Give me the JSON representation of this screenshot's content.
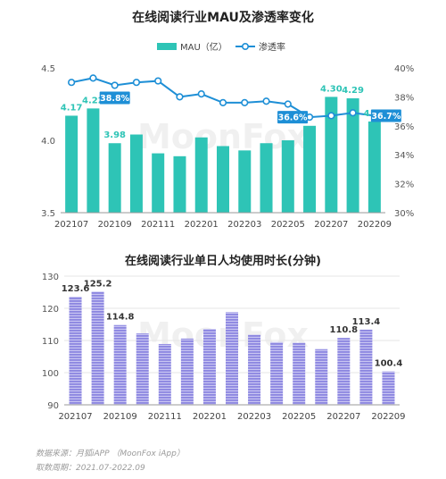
{
  "chart_data": [
    {
      "type": "bar+line",
      "title": "在线阅读行业MAU及渗透率变化",
      "legend": [
        "MAU（亿）",
        "渗透率"
      ],
      "legend_position": "top-center",
      "categories": [
        "202107",
        "202108",
        "202109",
        "202110",
        "202111",
        "202112",
        "202201",
        "202202",
        "202203",
        "202204",
        "202205",
        "202206",
        "202207",
        "202208",
        "202209"
      ],
      "x_tick_labels": [
        "202107",
        "202109",
        "202111",
        "202201",
        "202203",
        "202205",
        "202207",
        "202209"
      ],
      "series": [
        {
          "name": "MAU（亿）",
          "type": "bar",
          "axis": "left",
          "values": [
            4.17,
            4.22,
            3.98,
            4.04,
            3.91,
            3.89,
            4.02,
            3.96,
            3.93,
            3.98,
            4.0,
            4.1,
            4.3,
            4.29,
            4.13
          ]
        },
        {
          "name": "渗透率",
          "type": "line",
          "axis": "right",
          "values": [
            39.0,
            39.3,
            38.8,
            39.0,
            39.1,
            38.0,
            38.2,
            37.6,
            37.6,
            37.7,
            37.5,
            36.6,
            36.7,
            36.9,
            36.7
          ]
        }
      ],
      "bar_labels": [
        {
          "index": 0,
          "text": "4.17"
        },
        {
          "index": 1,
          "text": "4.22"
        },
        {
          "index": 2,
          "text": "3.98"
        },
        {
          "index": 12,
          "text": "4.30"
        },
        {
          "index": 13,
          "text": "4.29"
        },
        {
          "index": 14,
          "text": "4.13"
        }
      ],
      "line_labels": [
        {
          "index": 2,
          "text": "38.8%"
        },
        {
          "index": 11,
          "text": "36.6%"
        },
        {
          "index": 14,
          "text": "36.7%"
        }
      ],
      "y_left": {
        "min": 3.5,
        "max": 4.5,
        "ticks": [
          "3.5",
          "4.0",
          "4.5"
        ]
      },
      "y_right": {
        "min": 30,
        "max": 40,
        "ticks": [
          "30%",
          "32%",
          "34%",
          "36%",
          "38%",
          "40%"
        ]
      },
      "colors": {
        "bar": "#2ec4b6",
        "line": "#1e8fd6",
        "label_box": "#1e8fd6"
      }
    },
    {
      "type": "bar",
      "title": "在线阅读行业单日人均使用时长(分钟)",
      "categories": [
        "202107",
        "202108",
        "202109",
        "202110",
        "202111",
        "202112",
        "202201",
        "202202",
        "202203",
        "202204",
        "202205",
        "202206",
        "202207",
        "202208",
        "202209"
      ],
      "x_tick_labels": [
        "202107",
        "202109",
        "202111",
        "202201",
        "202203",
        "202205",
        "202207",
        "202209"
      ],
      "values": [
        123.6,
        125.2,
        114.8,
        112.2,
        108.9,
        110.6,
        113.6,
        118.8,
        111.8,
        109.5,
        109.3,
        107.3,
        110.8,
        113.4,
        100.4
      ],
      "bar_labels": [
        {
          "index": 0,
          "text": "123.6"
        },
        {
          "index": 1,
          "text": "125.2"
        },
        {
          "index": 2,
          "text": "114.8"
        },
        {
          "index": 12,
          "text": "110.8"
        },
        {
          "index": 13,
          "text": "113.4"
        },
        {
          "index": 14,
          "text": "100.4"
        }
      ],
      "y": {
        "min": 90,
        "max": 130,
        "ticks": [
          "90",
          "100",
          "110",
          "120",
          "130"
        ]
      },
      "grid": true,
      "colors": {
        "bar": "#8b86e0",
        "stripe": "#c9c6f2"
      }
    }
  ],
  "watermark": "MoonFox",
  "footnotes": [
    "数据来源：月狐iAPP （MoonFox iApp）",
    "取数周期：2021.07-2022.09"
  ]
}
